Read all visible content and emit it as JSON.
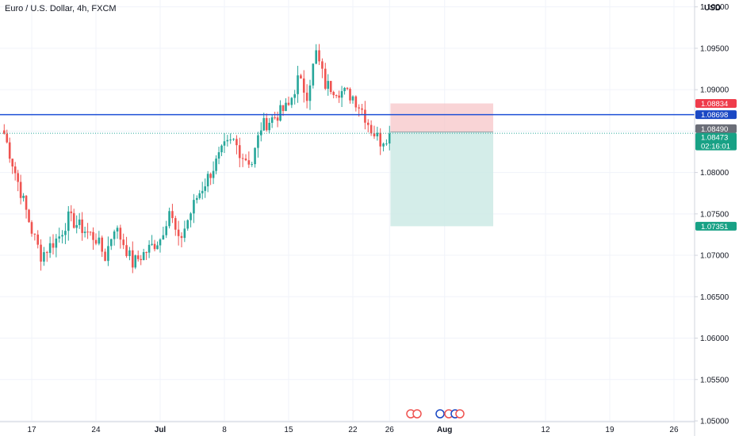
{
  "header": {
    "title": "Euro / U.S. Dollar, 4h, FXCM",
    "currency": "USD"
  },
  "colors": {
    "bull": "#26a69a",
    "bear": "#ef5350",
    "blue_line": "#1e4fd6",
    "stop_zone": "#f7c5c8",
    "target_zone": "#cdeae5",
    "badge_red": "#ef3c4b",
    "badge_blue": "#1a48c4",
    "badge_gray": "#6b6e78",
    "badge_green": "#18a185"
  },
  "chart_data": {
    "type": "candlestick",
    "symbol": "Euro / U.S. Dollar",
    "timeframe": "4h",
    "source": "FXCM",
    "ylim": [
      1.04818,
      1.10083
    ],
    "y_ticks": [
      "1.10000",
      "1.09500",
      "1.09000",
      "1.08500",
      "1.08000",
      "1.07500",
      "1.07000",
      "1.06500",
      "1.06000",
      "1.05500",
      "1.05000"
    ],
    "x_ticks": [
      "17",
      "24",
      "Jul",
      "8",
      "15",
      "22",
      "26",
      "Aug",
      "12",
      "19",
      "26"
    ],
    "price_labels": [
      {
        "text": "1.08834",
        "value": 1.08834,
        "role": "stop"
      },
      {
        "text": "1.08698",
        "value": 1.08698,
        "role": "horizontal_line"
      },
      {
        "text": "1.08490",
        "value": 1.0849,
        "role": "entry"
      },
      {
        "text": "1.08473",
        "value": 1.08473,
        "role": "last_price",
        "countdown": "02:16:01"
      },
      {
        "text": "1.07351",
        "value": 1.07351,
        "role": "target"
      }
    ],
    "horizontal_line": 1.08698,
    "position": {
      "side": "short",
      "entry": 1.0849,
      "stop": 1.08834,
      "target": 1.07351,
      "from": "26",
      "to": "Aug"
    },
    "anchors": [
      {
        "label": "Jun 14",
        "close": 1.0847
      },
      {
        "label": "Jun 17",
        "close": 1.073
      },
      {
        "label": "Jun 18",
        "close": 1.07
      },
      {
        "label": "Jun 20",
        "close": 1.0723
      },
      {
        "label": "Jun 21",
        "close": 1.0745
      },
      {
        "label": "Jun 24",
        "close": 1.072
      },
      {
        "label": "Jun 25",
        "close": 1.0698
      },
      {
        "label": "Jun 26",
        "close": 1.0735
      },
      {
        "label": "Jun 27",
        "close": 1.0715
      },
      {
        "label": "Jun 28",
        "close": 1.069
      },
      {
        "label": "Jul 1",
        "close": 1.072
      },
      {
        "label": "Jul 2",
        "close": 1.0755
      },
      {
        "label": "Jul 3",
        "close": 1.0715
      },
      {
        "label": "Jul 5",
        "close": 1.077
      },
      {
        "label": "Jul 8",
        "close": 1.083
      },
      {
        "label": "Jul 9",
        "close": 1.0838
      },
      {
        "label": "Jul 10",
        "close": 1.082
      },
      {
        "label": "Jul 11",
        "close": 1.0812
      },
      {
        "label": "Jul 12",
        "close": 1.0855
      },
      {
        "label": "Jul 15",
        "close": 1.088
      },
      {
        "label": "Jul 16",
        "close": 1.0912
      },
      {
        "label": "Jul 17",
        "close": 1.0895
      },
      {
        "label": "Jul 18",
        "close": 1.0944
      },
      {
        "label": "Jul 19",
        "close": 1.0906
      },
      {
        "label": "Jul 22",
        "close": 1.0892
      },
      {
        "label": "Jul 23",
        "close": 1.0876
      },
      {
        "label": "Jul 24",
        "close": 1.0852
      },
      {
        "label": "Jul 25",
        "close": 1.0838
      },
      {
        "label": "Jul 26",
        "close": 1.0847
      }
    ]
  }
}
